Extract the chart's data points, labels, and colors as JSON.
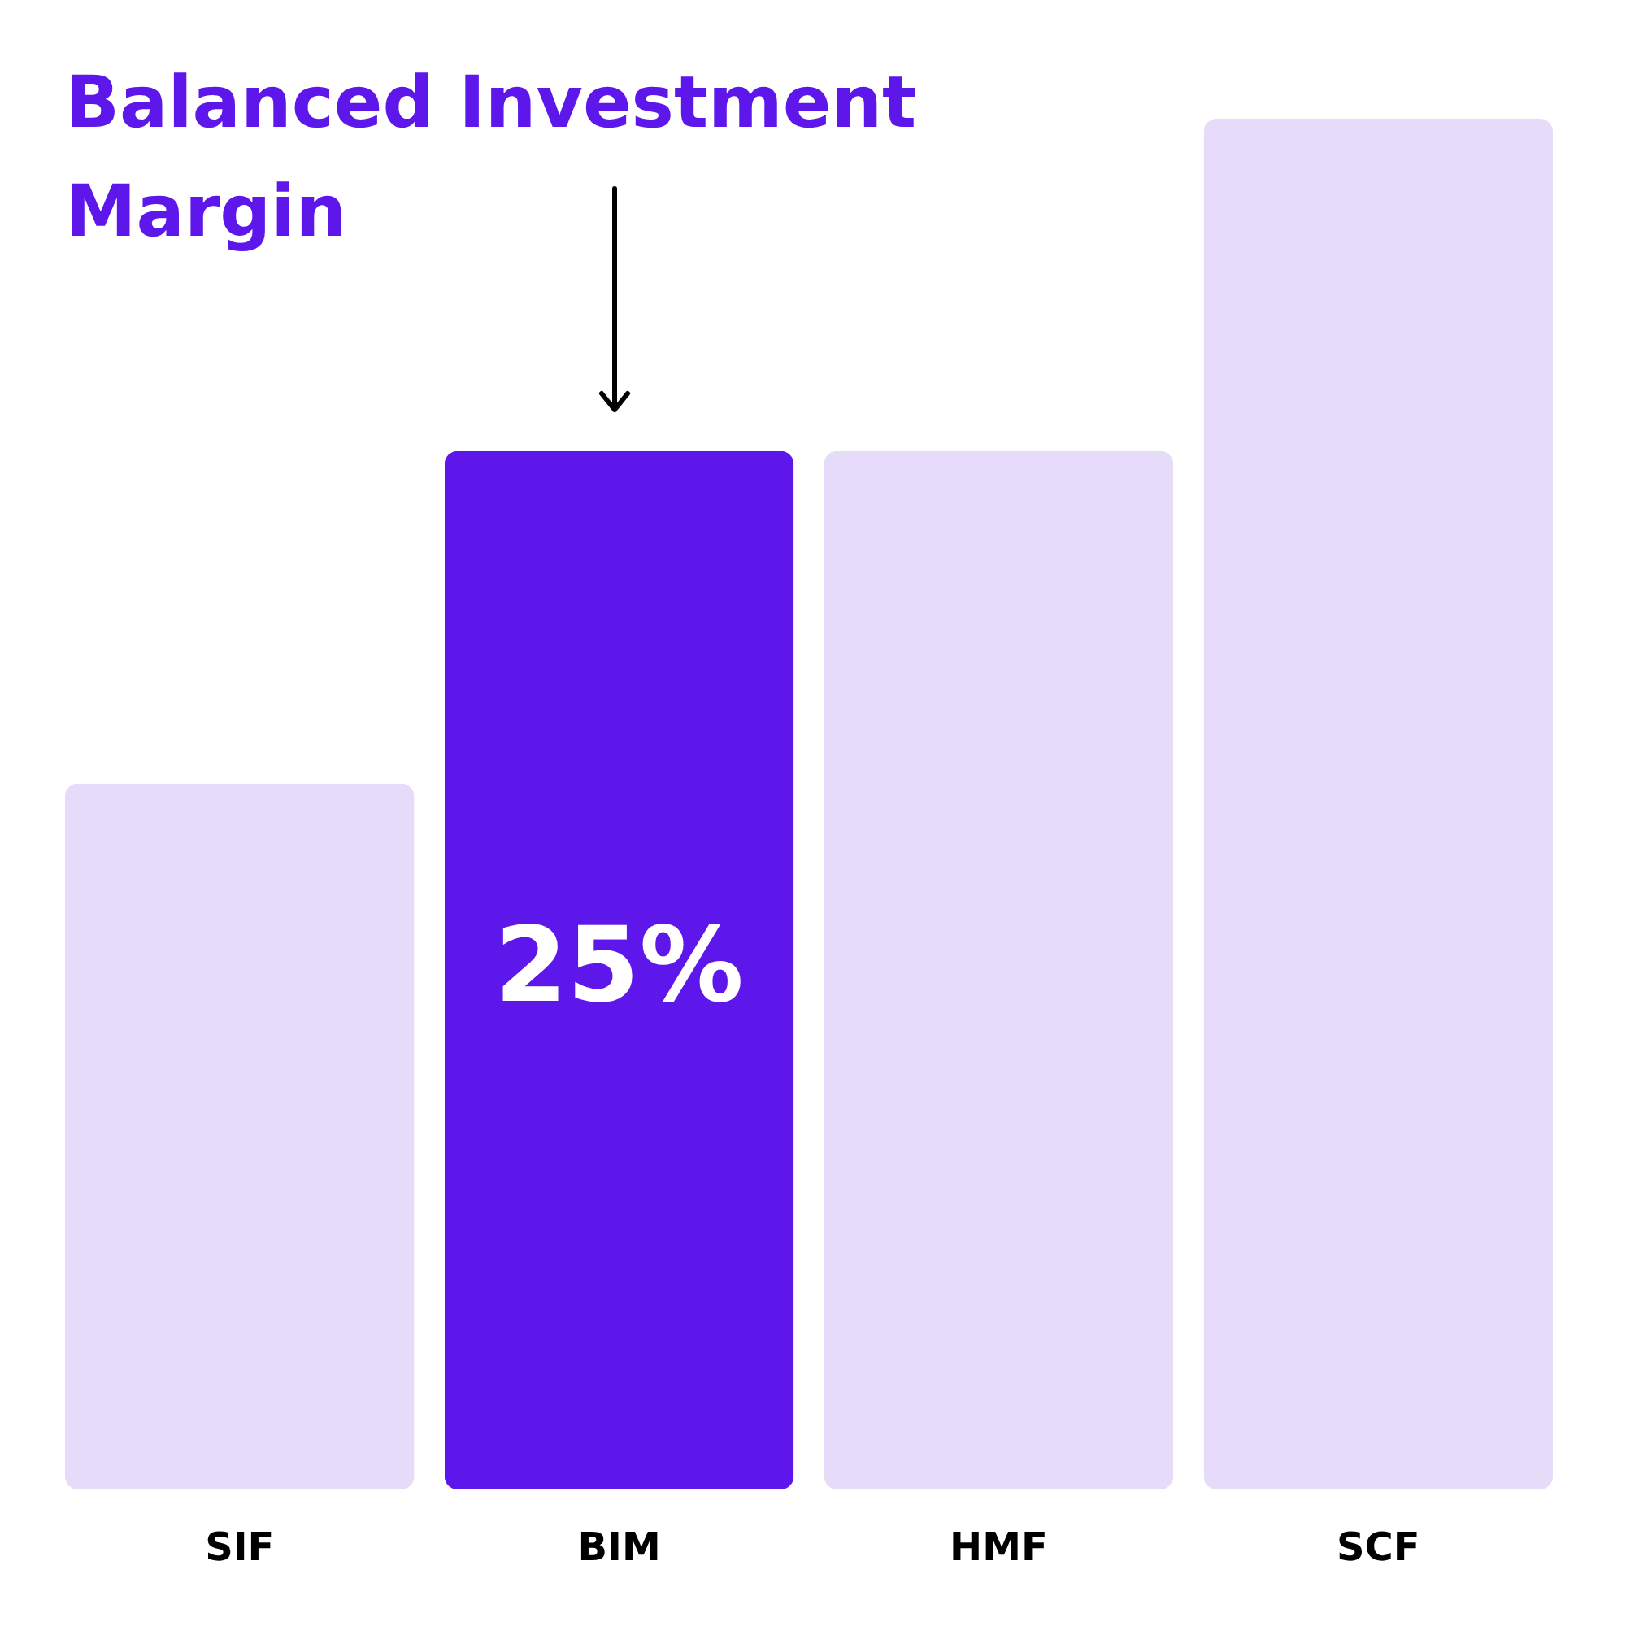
{
  "chart_data": {
    "type": "bar",
    "title": "Balanced Investment Margin",
    "categories": [
      "SIF",
      "BIM",
      "HMF",
      "SCF"
    ],
    "values": [
      17,
      25,
      25,
      33
    ],
    "colors": [
      "#e6dcfa",
      "#5e17eb",
      "#e6dcfa",
      "#e6dcfa"
    ],
    "value_labels": [
      null,
      "25%",
      null,
      null
    ]
  }
}
